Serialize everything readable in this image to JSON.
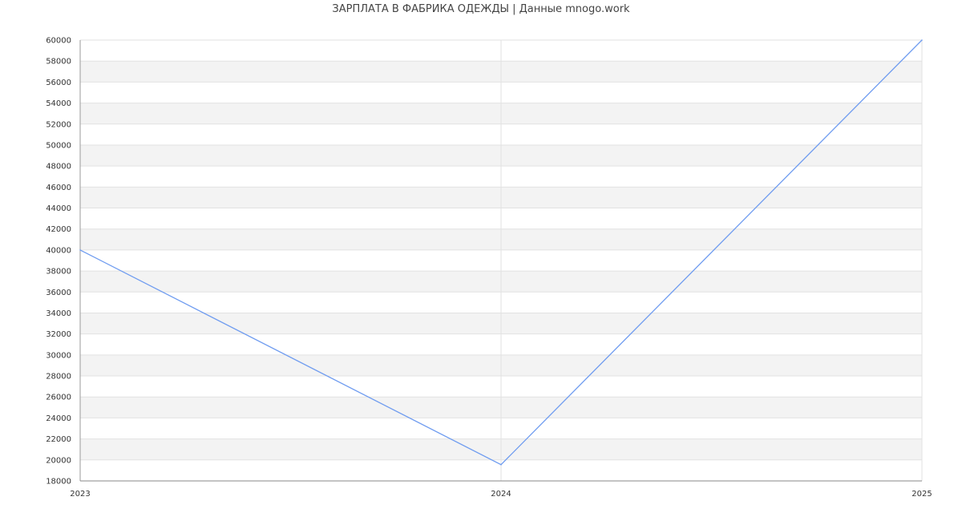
{
  "chart_data": {
    "type": "line",
    "title": "ЗАРПЛАТА В ФАБРИКА ОДЕЖДЫ  | Данные mnogo.work",
    "xlabel": "",
    "ylabel": "",
    "x": [
      "2023",
      "2024",
      "2025"
    ],
    "series": [
      {
        "values": [
          40000,
          19550,
          60000
        ],
        "color": "#6f9cf0"
      }
    ],
    "ylim": [
      18000,
      60000
    ],
    "ytick_step": 2000,
    "grid": true,
    "band_colors": [
      "#ffffff",
      "#f3f3f3"
    ],
    "legend": "none"
  }
}
